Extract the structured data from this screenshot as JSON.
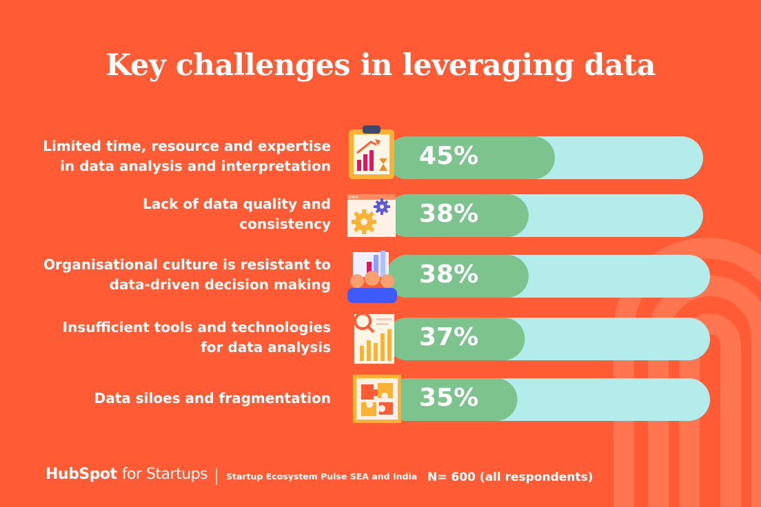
{
  "title": "Key challenges in leveraging data",
  "chart_data": {
    "type": "bar",
    "orientation": "horizontal",
    "categories": [
      "Limited time, resource and expertise\nin data analysis and interpretation",
      "Lack of data quality and\nconsistency",
      "Organisational culture is resistant to\ndata-driven decision making",
      "Insufficient tools and technologies\nfor data analysis",
      "Data siloes and fragmentation"
    ],
    "values": [
      45,
      38,
      38,
      37,
      35
    ],
    "value_labels": [
      "45%",
      "38%",
      "38%",
      "37%",
      "35%"
    ],
    "xlim": [
      0,
      100
    ],
    "icons": [
      "chart-clipboard-icon",
      "gears-icon",
      "team-chart-icon",
      "magnifier-chart-icon",
      "puzzle-icon"
    ],
    "colors": {
      "bar": "#7DC38E",
      "track": "#B4EBEB",
      "background": "#FF5C35",
      "text": "#ffffff"
    }
  },
  "footer": {
    "brand_bold": "HubSpot",
    "brand_light": "for Startups",
    "source": "Startup Ecosystem Pulse SEA and India",
    "note": "N= 600 (all respondents)"
  }
}
